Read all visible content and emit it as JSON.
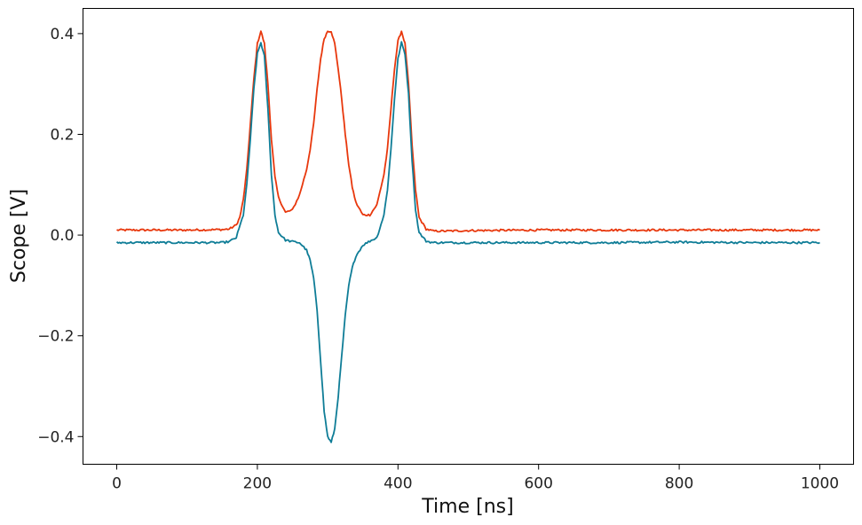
{
  "chart_data": {
    "type": "line",
    "title": "",
    "xlabel": "Time [ns]",
    "ylabel": "Scope [V]",
    "xlim": [
      -48,
      1048
    ],
    "ylim": [
      -0.455,
      0.45
    ],
    "xticks": [
      0,
      200,
      400,
      600,
      800,
      1000
    ],
    "xtick_labels": [
      "0",
      "200",
      "400",
      "600",
      "800",
      "1000"
    ],
    "yticks": [
      0.4,
      0.2,
      0.0,
      -0.2,
      -0.4
    ],
    "ytick_labels": [
      "0.4",
      "0.2",
      "0.0",
      "−0.2",
      "−0.4"
    ],
    "grid": false,
    "series": [
      {
        "color": "#e8380d",
        "x": [
          0,
          100,
          150,
          160,
          170,
          175,
          180,
          185,
          190,
          195,
          200,
          205,
          210,
          215,
          220,
          225,
          230,
          240,
          250,
          260,
          270,
          275,
          280,
          285,
          290,
          295,
          300,
          305,
          310,
          315,
          320,
          325,
          330,
          335,
          340,
          350,
          360,
          370,
          380,
          385,
          390,
          395,
          400,
          405,
          410,
          415,
          420,
          425,
          430,
          440,
          450,
          470,
          500,
          600,
          700,
          800,
          900,
          1000
        ],
        "y": [
          0.01,
          0.01,
          0.011,
          0.012,
          0.02,
          0.035,
          0.07,
          0.13,
          0.22,
          0.31,
          0.38,
          0.405,
          0.38,
          0.3,
          0.19,
          0.115,
          0.075,
          0.045,
          0.05,
          0.08,
          0.13,
          0.17,
          0.22,
          0.29,
          0.35,
          0.39,
          0.405,
          0.405,
          0.38,
          0.33,
          0.27,
          0.2,
          0.14,
          0.095,
          0.065,
          0.04,
          0.04,
          0.06,
          0.12,
          0.17,
          0.25,
          0.33,
          0.385,
          0.405,
          0.38,
          0.3,
          0.18,
          0.09,
          0.035,
          0.012,
          0.008,
          0.008,
          0.009,
          0.01,
          0.01,
          0.01,
          0.01,
          0.01
        ]
      },
      {
        "color": "#0f7d97",
        "x": [
          0,
          100,
          150,
          160,
          170,
          180,
          185,
          190,
          195,
          200,
          205,
          210,
          215,
          220,
          225,
          230,
          240,
          250,
          260,
          270,
          275,
          280,
          285,
          290,
          295,
          300,
          305,
          310,
          315,
          320,
          325,
          330,
          335,
          340,
          350,
          360,
          370,
          380,
          385,
          390,
          395,
          400,
          405,
          410,
          415,
          420,
          425,
          430,
          440,
          450,
          500,
          600,
          700,
          800,
          900,
          1000
        ],
        "y": [
          -0.015,
          -0.015,
          -0.015,
          -0.013,
          -0.005,
          0.04,
          0.1,
          0.19,
          0.29,
          0.36,
          0.382,
          0.355,
          0.25,
          0.12,
          0.04,
          0.005,
          -0.01,
          -0.013,
          -0.015,
          -0.03,
          -0.05,
          -0.085,
          -0.15,
          -0.25,
          -0.35,
          -0.4,
          -0.412,
          -0.385,
          -0.32,
          -0.24,
          -0.16,
          -0.1,
          -0.065,
          -0.042,
          -0.02,
          -0.012,
          -0.005,
          0.04,
          0.09,
          0.17,
          0.27,
          0.35,
          0.382,
          0.36,
          0.28,
          0.15,
          0.05,
          0.005,
          -0.012,
          -0.015,
          -0.015,
          -0.015,
          -0.015,
          -0.014,
          -0.015,
          -0.015
        ]
      }
    ]
  }
}
